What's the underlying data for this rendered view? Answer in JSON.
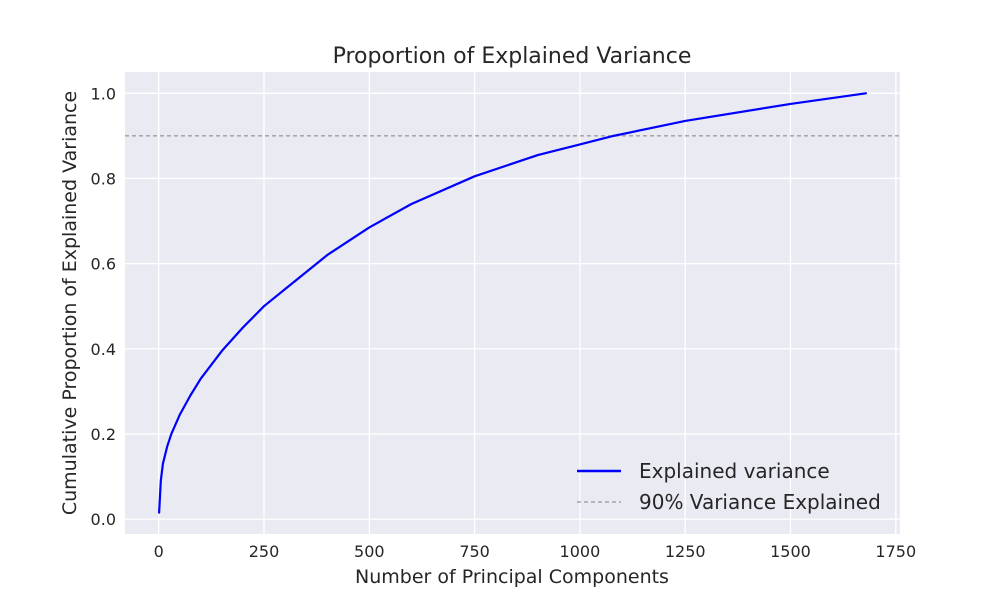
{
  "chart_data": {
    "type": "line",
    "title": "Proportion of Explained Variance",
    "xlabel": "Number of Principal Components",
    "ylabel": "Cumulative Proportion of Explained Variance",
    "xlim": [
      -80,
      1760
    ],
    "ylim": [
      -0.035,
      1.05
    ],
    "xticks": [
      0,
      250,
      500,
      750,
      1000,
      1250,
      1500,
      1750
    ],
    "xtick_labels": [
      "0",
      "250",
      "500",
      "750",
      "1000",
      "1250",
      "1500",
      "1750"
    ],
    "yticks": [
      0.0,
      0.2,
      0.4,
      0.6,
      0.8,
      1.0
    ],
    "ytick_labels": [
      "0.0",
      "0.2",
      "0.4",
      "0.6",
      "0.8",
      "1.0"
    ],
    "grid": true,
    "legend_position": "lower-right",
    "series": [
      {
        "name": "Explained variance",
        "color": "#0000ff",
        "style": "solid",
        "x": [
          1,
          5,
          10,
          20,
          30,
          50,
          75,
          100,
          150,
          200,
          250,
          300,
          400,
          500,
          600,
          750,
          900,
          1000,
          1080,
          1250,
          1500,
          1679
        ],
        "y": [
          0.015,
          0.09,
          0.13,
          0.17,
          0.2,
          0.245,
          0.29,
          0.33,
          0.395,
          0.45,
          0.5,
          0.54,
          0.62,
          0.685,
          0.74,
          0.805,
          0.855,
          0.88,
          0.9,
          0.935,
          0.975,
          1.0
        ]
      }
    ],
    "reference_lines": [
      {
        "name": "90% Variance Explained",
        "orientation": "horizontal",
        "y": 0.9,
        "color": "#808080",
        "style": "dashed"
      }
    ],
    "colors": {
      "plot_background": "#eaeaf2",
      "grid": "#ffffff",
      "text": "#262626"
    }
  }
}
